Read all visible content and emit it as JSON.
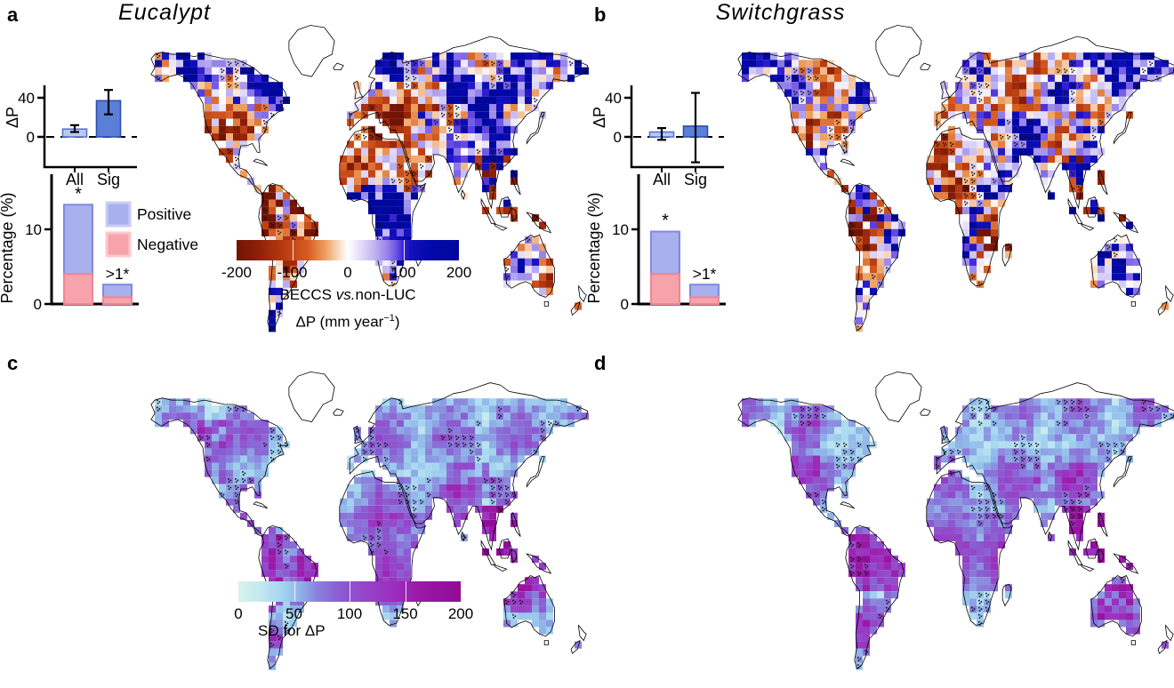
{
  "panels": {
    "a": {
      "label": "a",
      "title": "Eucalypt"
    },
    "b": {
      "label": "b",
      "title": "Switchgrass"
    },
    "c": {
      "label": "c"
    },
    "d": {
      "label": "d"
    }
  },
  "colors": {
    "positive_fill": "#a9b0ee",
    "positive_edge": "#8289e0",
    "positive_legend_edge": "#c9cdf6",
    "negative_fill": "#f7a3ab",
    "negative_edge": "#ef8691",
    "negative_legend_edge": "#fbc9ce",
    "all_bar_fill": "#b9c9f2",
    "all_bar_edge": "#5a74cf",
    "sig_bar_fill": "#5b7fd9",
    "sig_bar_edge": "#2f4fae",
    "coast": "#000000",
    "stipple": "#111111"
  },
  "chart_data": [
    {
      "id": "inset-dp-a",
      "type": "bar",
      "panel": "a",
      "ylabel": "ΔP",
      "yticks": [
        0,
        40
      ],
      "ylim": [
        -30,
        52
      ],
      "categories": [
        "All",
        "Sig"
      ],
      "values": [
        8,
        37
      ],
      "error_bars": [
        [
          5,
          12
        ],
        [
          23,
          48
        ]
      ],
      "zero_line": "dashed"
    },
    {
      "id": "inset-pct-a",
      "type": "stacked-bar",
      "panel": "a",
      "ylabel": "Percentage (%)",
      "yticks": [
        0,
        10
      ],
      "ylim": [
        0,
        17.4
      ],
      "categories": [
        "All",
        ">1"
      ],
      "series": [
        {
          "name": "Negative",
          "values": [
            4.0,
            0.9
          ]
        },
        {
          "name": "Positive",
          "values": [
            9.3,
            1.7
          ]
        }
      ],
      "annotations": [
        "*",
        ">1*"
      ],
      "legend": [
        "Positive",
        "Negative"
      ],
      "legend_position": "top-right"
    },
    {
      "id": "inset-dp-b",
      "type": "bar",
      "panel": "b",
      "ylabel": "ΔP",
      "yticks": [
        0,
        40
      ],
      "ylim": [
        -30,
        52
      ],
      "categories": [
        "All",
        "Sig"
      ],
      "values": [
        5,
        11
      ],
      "error_bars": [
        [
          -3,
          9
        ],
        [
          -26,
          45
        ]
      ],
      "zero_line": "dashed"
    },
    {
      "id": "inset-pct-b",
      "type": "stacked-bar",
      "panel": "b",
      "ylabel": "Percentage (%)",
      "yticks": [
        0,
        10
      ],
      "ylim": [
        0,
        17.4
      ],
      "categories": [
        "All",
        ">1"
      ],
      "series": [
        {
          "name": "Negative",
          "values": [
            4.0,
            0.9
          ]
        },
        {
          "name": "Positive",
          "values": [
            5.7,
            1.7
          ]
        }
      ],
      "annotations": [
        "*",
        ">1*"
      ],
      "legend": []
    },
    {
      "id": "colorbar-dp",
      "type": "colorbar",
      "ticks": [
        -200,
        -100,
        0,
        100,
        200
      ],
      "range": [
        -200,
        200
      ],
      "title_segments": [
        {
          "text": "BECCS ",
          "style": "normal"
        },
        {
          "text": "vs.",
          "style": "italic"
        },
        {
          "text": "non-LUC",
          "style": "normal"
        }
      ],
      "unit_prefix": "ΔP (mm year",
      "unit_sup": "−1",
      "unit_suffix": ")",
      "stops": [
        [
          0,
          "#701405"
        ],
        [
          0.1,
          "#8f2008"
        ],
        [
          0.22,
          "#bb3d11"
        ],
        [
          0.32,
          "#d65c22"
        ],
        [
          0.4,
          "#eda05f"
        ],
        [
          0.46,
          "#f9dcc6"
        ],
        [
          0.5,
          "#ffffff"
        ],
        [
          0.55,
          "#e6e1fa"
        ],
        [
          0.62,
          "#c0b4f3"
        ],
        [
          0.68,
          "#9581ea"
        ],
        [
          0.72,
          "#6a4fe3"
        ],
        [
          0.75,
          "#3b23d4"
        ],
        [
          0.78,
          "#1410bd"
        ],
        [
          0.86,
          "#0309ab"
        ],
        [
          1,
          "#01079b"
        ]
      ]
    },
    {
      "id": "colorbar-sd",
      "type": "colorbar",
      "ticks": [
        0,
        50,
        100,
        150,
        200
      ],
      "range": [
        0,
        200
      ],
      "label": "SD for ΔP",
      "stops": [
        [
          0,
          "#d9f3e9"
        ],
        [
          0.1,
          "#c3e8f0"
        ],
        [
          0.2,
          "#a2d4f0"
        ],
        [
          0.28,
          "#8fb2e8"
        ],
        [
          0.35,
          "#8a84dd"
        ],
        [
          0.45,
          "#8a5ed2"
        ],
        [
          0.55,
          "#9349c9"
        ],
        [
          0.68,
          "#9c30bf"
        ],
        [
          0.82,
          "#9a18a6"
        ],
        [
          1,
          "#8f0d95"
        ]
      ]
    },
    {
      "id": "map-a",
      "type": "heatmap",
      "panel": "a",
      "variable": "ΔP BECCS vs non-LUC, Eucalypt",
      "units": "mm year−1",
      "value_range": [
        -200,
        200
      ],
      "palette_ref": "colorbar-dp",
      "summary": "Diverging map: blue/purple (wetter) over boreal latitudes, western Canada, East Asia, Congo and maritime Southeast Asia; orange/red (drier) over central US, western Russia, Sahel; black stippling marks significant cells; Greenland and high Arctic uncolored."
    },
    {
      "id": "map-b",
      "type": "heatmap",
      "panel": "b",
      "variable": "ΔP BECCS vs non-LUC, Switchgrass",
      "units": "mm year−1",
      "value_range": [
        -200,
        200
      ],
      "palette_ref": "colorbar-dp",
      "summary": "Diverging map: strong orange/red drying over central-eastern US and Mexico, mixed strong blue/red over maritime Southeast Asia, light purple over boreal zones and Australia; black stippling marks significant cells."
    },
    {
      "id": "map-c",
      "type": "heatmap",
      "panel": "c",
      "variable": "SD for ΔP, Eucalypt",
      "units": "mm year−1",
      "value_range": [
        0,
        200
      ],
      "palette_ref": "colorbar-sd",
      "summary": "Sequential map: pale cyan low SD over continental interiors; purple/magenta high SD along Andes, western North America, tropical coasts and maritime Southeast Asia."
    },
    {
      "id": "map-d",
      "type": "heatmap",
      "panel": "d",
      "variable": "SD for ΔP, Switchgrass",
      "units": "mm year−1",
      "value_range": [
        0,
        200
      ],
      "palette_ref": "colorbar-sd",
      "summary": "Sequential map: pale cyan low SD interiors; magenta high SD over Indonesia/New Guinea and central Australia; purple bands along mountain and coastal regions."
    }
  ]
}
